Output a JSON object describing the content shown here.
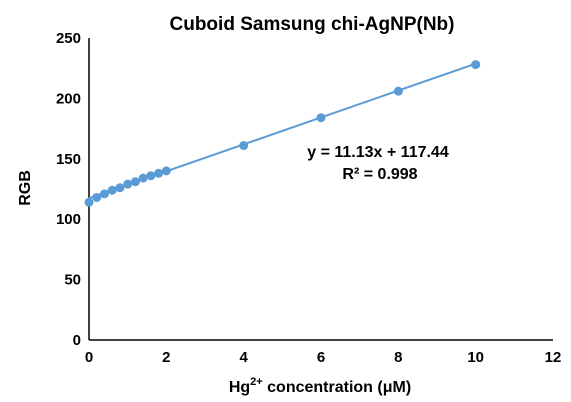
{
  "chart_data": {
    "type": "scatter",
    "title": "Cuboid Samsung chi-AgNP(Nb)",
    "xlabel": {
      "prefix": "Hg",
      "superscript": "2+",
      "suffix": " concentration (μM)"
    },
    "ylabel": "RGB",
    "xlim": [
      0,
      12
    ],
    "ylim": [
      0,
      250
    ],
    "x_ticks": [
      0,
      2,
      4,
      6,
      8,
      10,
      12
    ],
    "y_ticks": [
      0,
      50,
      100,
      150,
      200,
      250
    ],
    "x_tick_labels": [
      "0",
      "2",
      "4",
      "6",
      "8",
      "10",
      "12"
    ],
    "y_tick_labels": [
      "0",
      "50",
      "100",
      "150",
      "200",
      "250"
    ],
    "grid": false,
    "legend": "none",
    "series": [
      {
        "color": "#5b9bd5",
        "points": [
          {
            "x": 0.0,
            "y": 114
          },
          {
            "x": 0.2,
            "y": 118
          },
          {
            "x": 0.4,
            "y": 121
          },
          {
            "x": 0.6,
            "y": 124
          },
          {
            "x": 0.8,
            "y": 126
          },
          {
            "x": 1.0,
            "y": 129
          },
          {
            "x": 1.2,
            "y": 131
          },
          {
            "x": 1.4,
            "y": 134
          },
          {
            "x": 1.6,
            "y": 136
          },
          {
            "x": 1.8,
            "y": 138
          },
          {
            "x": 2.0,
            "y": 140
          },
          {
            "x": 4.0,
            "y": 161
          },
          {
            "x": 6.0,
            "y": 184
          },
          {
            "x": 8.0,
            "y": 206
          },
          {
            "x": 10.0,
            "y": 228
          }
        ]
      }
    ],
    "trendline": {
      "type": "linear",
      "slope": 11.13,
      "intercept": 117.44,
      "x_range": [
        0,
        10
      ],
      "color": "#5b9bd5",
      "equation_text": "y = 11.13x + 117.44",
      "r2_text": "R² = 0.998"
    }
  }
}
